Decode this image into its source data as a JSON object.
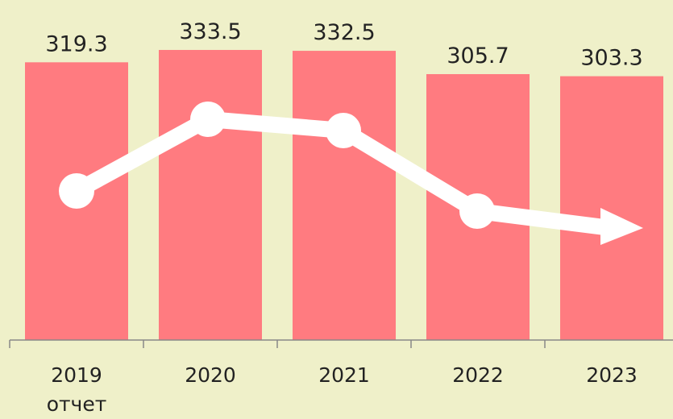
{
  "chart_data": {
    "type": "bar",
    "categories": [
      "2019\nотчет",
      "2020",
      "2021",
      "2022",
      "2023"
    ],
    "values": [
      319.3,
      333.5,
      332.5,
      305.7,
      303.3
    ],
    "color": "#ff7b80",
    "ylim": [
      0,
      390
    ]
  }
}
